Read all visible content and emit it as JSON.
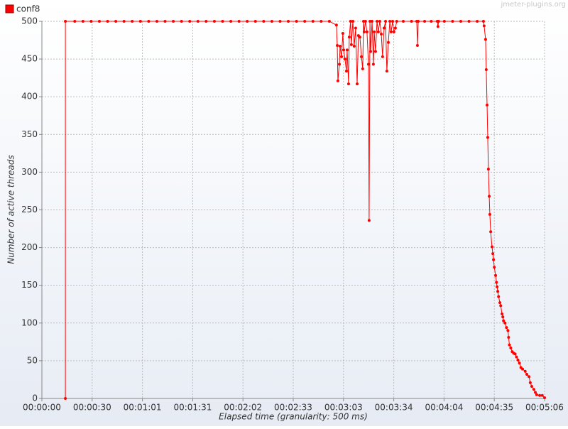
{
  "chart_data": {
    "type": "line",
    "watermark": "jmeter-plugins.org",
    "xlabel": "Elapsed time (granularity: 500 ms)",
    "ylabel": "Number of active threads",
    "legend": "top-left",
    "grid": true,
    "xlim": [
      0,
      306
    ],
    "ylim": [
      0,
      500
    ],
    "xticks": [
      {
        "value": 0,
        "label": "00:00:00"
      },
      {
        "value": 30.6,
        "label": "00:00:30"
      },
      {
        "value": 61.2,
        "label": "00:01:01"
      },
      {
        "value": 91.8,
        "label": "00:01:31"
      },
      {
        "value": 122.4,
        "label": "00:02:02"
      },
      {
        "value": 153,
        "label": "00:02:33"
      },
      {
        "value": 183.6,
        "label": "00:03:03"
      },
      {
        "value": 214.2,
        "label": "00:03:34"
      },
      {
        "value": 244.8,
        "label": "00:04:04"
      },
      {
        "value": 275.4,
        "label": "00:04:35"
      },
      {
        "value": 306,
        "label": "00:05:06"
      }
    ],
    "yticks": [
      0,
      50,
      100,
      150,
      200,
      250,
      300,
      350,
      400,
      450,
      500
    ],
    "x": [
      14.3,
      14.3,
      20,
      25,
      30,
      35,
      40,
      45,
      50,
      55,
      60,
      65,
      70,
      75,
      80,
      85,
      90,
      95,
      100,
      105,
      110,
      115,
      120,
      125,
      130,
      135,
      140,
      145,
      150,
      155,
      160,
      165,
      170,
      175,
      179.3,
      179.8,
      180.2,
      181.1,
      181.5,
      182.4,
      183.2,
      183.7,
      184.5,
      185.4,
      185.8,
      186.7,
      187.1,
      187.9,
      188.4,
      189.3,
      190.1,
      191,
      191.9,
      192.7,
      193.6,
      194.5,
      195.3,
      195.8,
      196.2,
      197,
      197.9,
      198.8,
      199.2,
      199.7,
      200.1,
      201,
      201.8,
      202.3,
      203.1,
      204,
      204.8,
      205.7,
      206.6,
      207.4,
      208.3,
      209.2,
      210,
      210.9,
      211.8,
      212.6,
      213.5,
      214.3,
      215.2,
      216,
      220,
      225,
      228.2,
      228.6,
      229.1,
      233,
      237,
      240.7,
      241.1,
      241.5,
      245,
      250,
      255,
      260,
      265,
      268.8,
      269.2,
      270.1,
      270.5,
      271,
      271.4,
      271.8,
      272.3,
      272.7,
      273.2,
      274,
      274.5,
      274.9,
      275.4,
      276.2,
      276.7,
      277.1,
      277.5,
      278,
      278.8,
      279.3,
      280.1,
      280.6,
      281,
      281.9,
      282.8,
      283.7,
      284.1,
      284.6,
      285.4,
      286.3,
      287.2,
      288.1,
      288.9,
      289.8,
      290.7,
      291.6,
      292.6,
      294.2,
      295.2,
      296.5,
      297.3,
      298.2,
      299.5,
      300.4,
      301.2,
      303,
      304.6,
      306
    ],
    "series": [
      {
        "name": "conf8",
        "color": "#ff0000",
        "values": [
          0,
          500,
          500,
          500,
          500,
          500,
          500,
          500,
          500,
          500,
          500,
          500,
          500,
          500,
          500,
          500,
          500,
          500,
          500,
          500,
          500,
          500,
          500,
          500,
          500,
          500,
          500,
          500,
          500,
          500,
          500,
          500,
          500,
          500,
          495,
          468,
          421,
          443,
          467,
          453,
          484,
          462,
          450,
          434,
          462,
          417,
          479,
          500,
          469,
          500,
          467,
          491,
          417,
          481,
          479,
          453,
          437,
          500,
          486,
          500,
          486,
          443,
          236,
          500,
          460,
          500,
          443,
          486,
          460,
          500,
          486,
          500,
          483,
          453,
          491,
          500,
          434,
          472,
          500,
          486,
          500,
          486,
          491,
          500,
          500,
          500,
          500,
          468,
          500,
          500,
          500,
          500,
          493,
          500,
          500,
          500,
          500,
          500,
          500,
          500,
          494,
          476,
          436,
          389,
          346,
          304,
          268,
          244,
          221,
          201,
          192,
          184,
          174,
          163,
          154,
          148,
          142,
          135,
          127,
          123,
          112,
          108,
          103,
          100,
          94,
          90,
          81,
          71,
          67,
          62,
          60,
          59,
          55,
          51,
          47,
          41,
          39,
          36,
          32,
          29,
          21,
          16,
          12,
          8,
          5,
          4,
          4,
          1
        ]
      }
    ]
  }
}
